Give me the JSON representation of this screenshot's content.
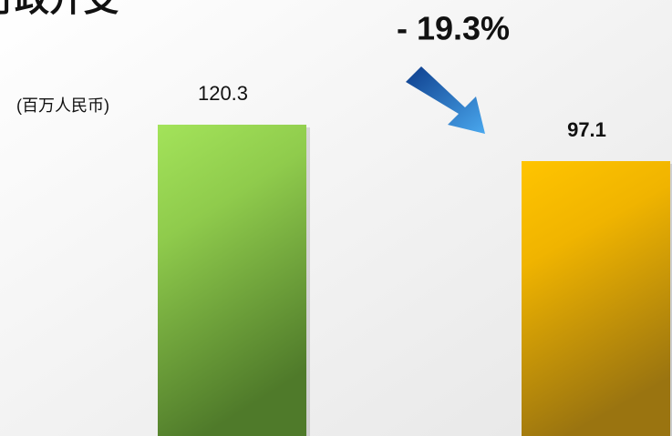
{
  "chart_data": {
    "type": "bar",
    "title": "行政开支",
    "unit_label": "(百万人民币)",
    "annotation": "- 19.3%",
    "categories": [
      null,
      null
    ],
    "values": [
      120.3,
      97.1
    ],
    "colors": [
      "#9fe05a",
      "#ffc000"
    ],
    "ylim": [
      -78,
      140
    ]
  }
}
